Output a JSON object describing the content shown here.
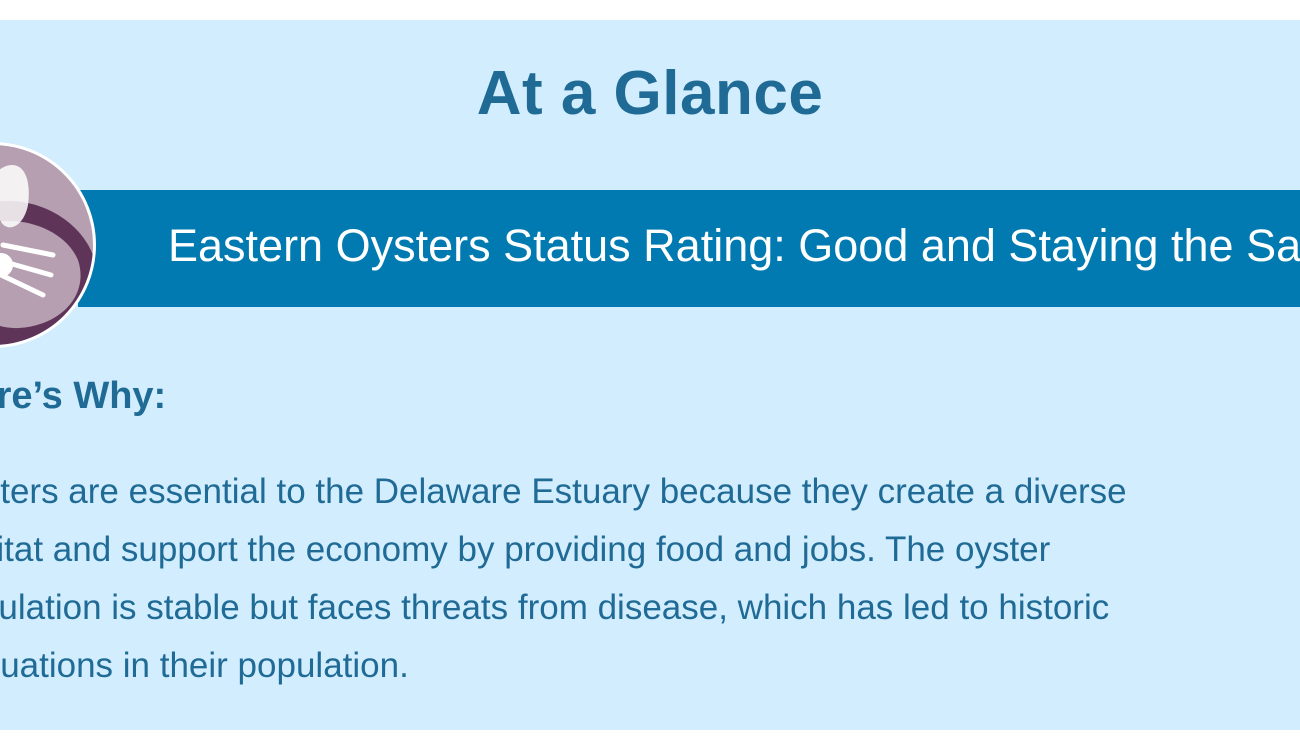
{
  "title": "At a Glance",
  "banner": {
    "text": "Eastern Oysters Status Rating: Good and Staying the Same"
  },
  "section_heading": "Here’s Why:",
  "body_lines": [
    "Oysters are essential to the Delaware Estuary because they create a diverse",
    "habitat and support the economy by providing food and jobs. The oyster",
    "population is stable but faces threats from disease, which has led to historic",
    "fluctuations in their population."
  ],
  "badge_icon": "oyster-icon",
  "colors": {
    "background": "#d2edfd",
    "banner": "#007ab0",
    "text": "#1f6b96",
    "badge": "#b59fb0",
    "shell": "#5e3558"
  }
}
